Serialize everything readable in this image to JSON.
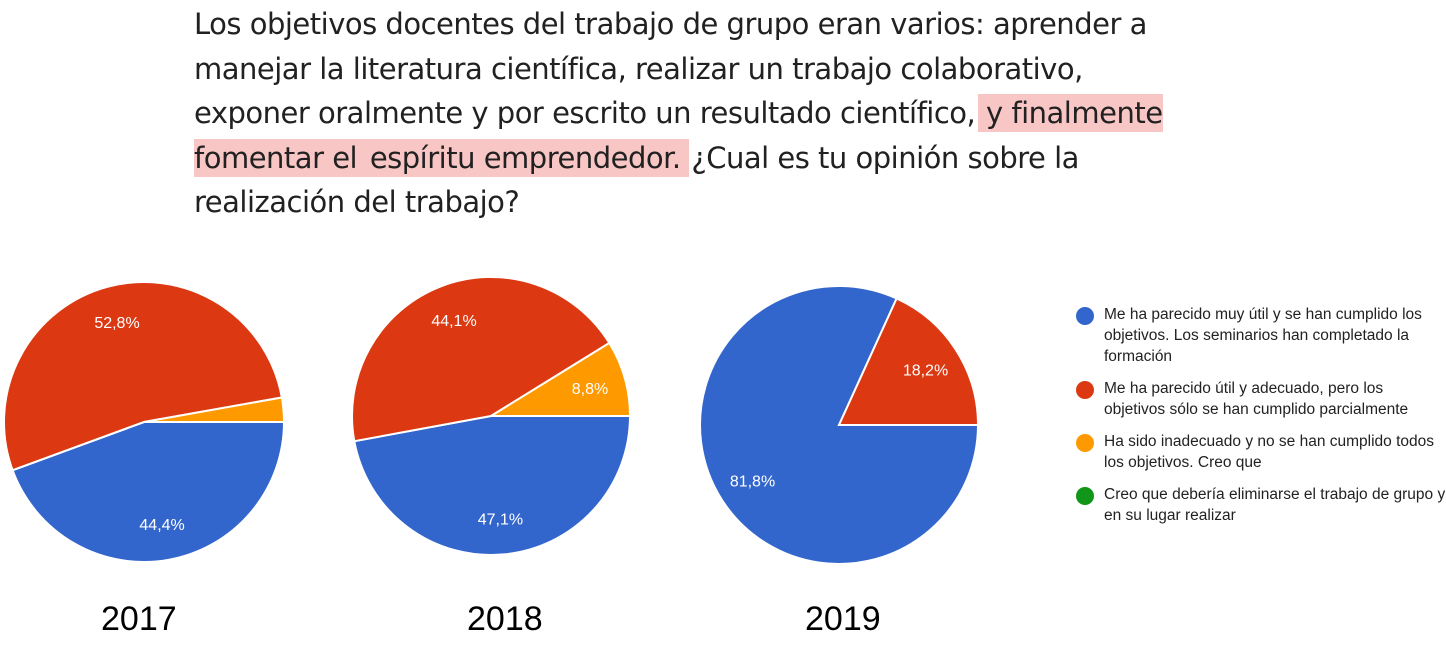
{
  "question": {
    "part1": "Los objetivos docentes del trabajo de grupo eran varios: aprender a manejar la literatura científica, realizar un trabajo colaborativo, exponer oralmente y por escrito un resultado científico,",
    "highlight1": "y finalmente fomentar el",
    "highlight2": "espíritu emprendedor.",
    "part2": "¿Cual es tu opinión sobre la realización del trabajo?"
  },
  "colors": {
    "blue": "#3366cc",
    "red": "#dc3912",
    "orange": "#ff9900",
    "green": "#109618",
    "highlight": "#f9c6c6"
  },
  "chart_data": [
    {
      "type": "pie",
      "title": "2017",
      "slices": [
        {
          "category": "Me ha parecido muy útil",
          "value": 44.4,
          "label": "44,4%"
        },
        {
          "category": "Me ha parecido útil y adecuado",
          "value": 52.8,
          "label": "52,8%"
        },
        {
          "category": "Ha sido inadecuado",
          "value": 2.8,
          "label": ""
        },
        {
          "category": "Creo que debería eliminarse",
          "value": 0,
          "label": ""
        }
      ]
    },
    {
      "type": "pie",
      "title": "2018",
      "slices": [
        {
          "category": "Me ha parecido muy útil",
          "value": 47.1,
          "label": "47,1%"
        },
        {
          "category": "Me ha parecido útil y adecuado",
          "value": 44.1,
          "label": "44,1%"
        },
        {
          "category": "Ha sido inadecuado",
          "value": 8.8,
          "label": "8,8%"
        },
        {
          "category": "Creo que debería eliminarse",
          "value": 0,
          "label": ""
        }
      ]
    },
    {
      "type": "pie",
      "title": "2019",
      "slices": [
        {
          "category": "Me ha parecido muy útil",
          "value": 81.8,
          "label": "81,8%"
        },
        {
          "category": "Me ha parecido útil y adecuado",
          "value": 18.2,
          "label": "18,2%"
        },
        {
          "category": "Ha sido inadecuado",
          "value": 0,
          "label": ""
        },
        {
          "category": "Creo que debería eliminarse",
          "value": 0,
          "label": ""
        }
      ]
    }
  ],
  "legend": [
    {
      "color": "#3366cc",
      "text": "Me ha parecido muy útil y se han cumplido los objetivos. Los seminarios han completado la formación"
    },
    {
      "color": "#dc3912",
      "text": "Me ha parecido útil y adecuado, pero los objetivos sólo se han cumplido parcialmente"
    },
    {
      "color": "#ff9900",
      "text": "Ha sido inadecuado y no se han cumplido todos los objetivos. Creo que"
    },
    {
      "color": "#109618",
      "text": "Creo que debería eliminarse el trabajo de grupo y en su lugar realizar"
    }
  ]
}
